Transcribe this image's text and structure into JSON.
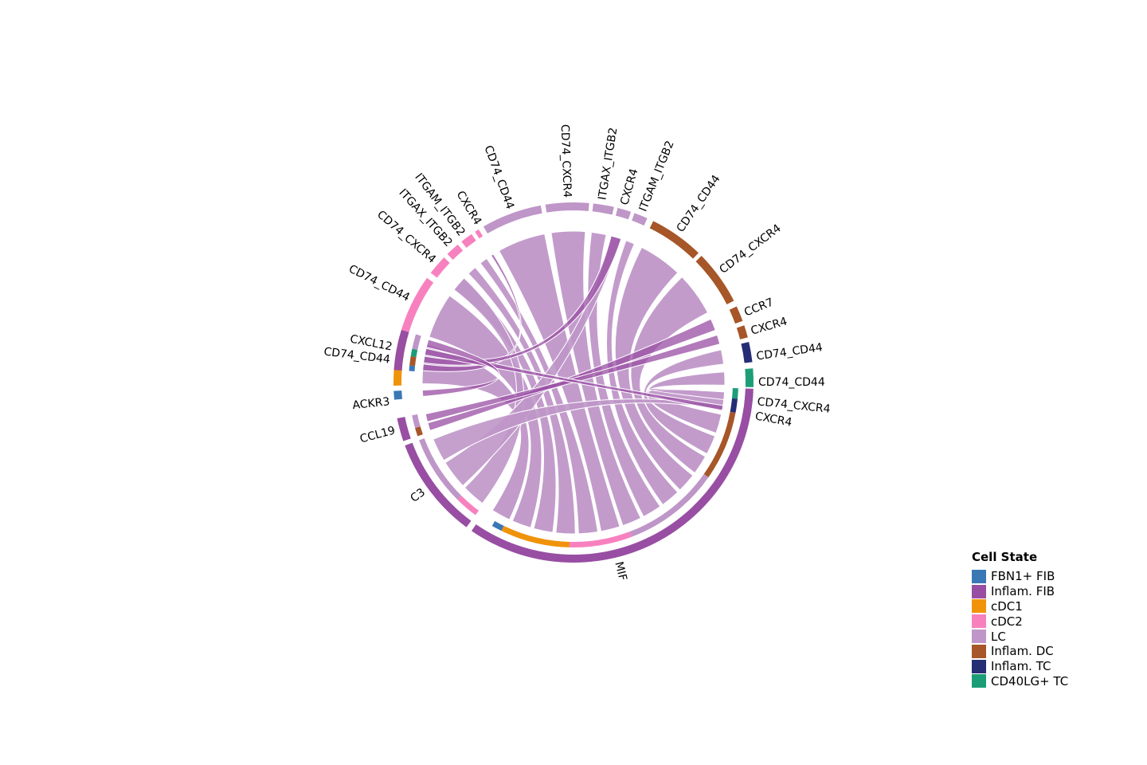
{
  "chart_data": {
    "type": "chord",
    "legend": {
      "title": "Cell State",
      "position": "bottom-right",
      "items": [
        {
          "label": "FBN1+ FIB",
          "color": "#3a78b5"
        },
        {
          "label": "Inflam. FIB",
          "color": "#984ea3"
        },
        {
          "label": "cDC1",
          "color": "#f0930a"
        },
        {
          "label": "cDC2",
          "color": "#f781bf"
        },
        {
          "label": "LC",
          "color": "#bf96c8"
        },
        {
          "label": "Inflam. DC",
          "color": "#a65628"
        },
        {
          "label": "Inflam. TC",
          "color": "#252d75"
        },
        {
          "label": "CD40LG+ TC",
          "color": "#1b9e77"
        }
      ]
    },
    "receivers": [
      {
        "label": "ACKR3",
        "cell_state": "FBN1+ FIB"
      },
      {
        "label": "CD74_CD44",
        "cell_state": "cDC1"
      },
      {
        "label": "CD74_CD44",
        "cell_state": "cDC2"
      },
      {
        "label": "CD74_CXCR4",
        "cell_state": "cDC2"
      },
      {
        "label": "ITGAX_ITGB2",
        "cell_state": "cDC2"
      },
      {
        "label": "ITGAM_ITGB2",
        "cell_state": "cDC2"
      },
      {
        "label": "CXCR4",
        "cell_state": "cDC2"
      },
      {
        "label": "CD74_CD44",
        "cell_state": "LC"
      },
      {
        "label": "CD74_CXCR4",
        "cell_state": "LC"
      },
      {
        "label": "ITGAX_ITGB2",
        "cell_state": "LC"
      },
      {
        "label": "CXCR4",
        "cell_state": "LC"
      },
      {
        "label": "ITGAM_ITGB2",
        "cell_state": "LC"
      },
      {
        "label": "CD74_CD44",
        "cell_state": "Inflam. DC"
      },
      {
        "label": "CD74_CXCR4",
        "cell_state": "Inflam. DC"
      },
      {
        "label": "CCR7",
        "cell_state": "Inflam. DC"
      },
      {
        "label": "CXCR4",
        "cell_state": "Inflam. DC"
      },
      {
        "label": "CD74_CD44",
        "cell_state": "Inflam. TC"
      },
      {
        "label": "CD74_CD44",
        "cell_state": "CD40LG+ TC"
      },
      {
        "label": "CD74_CXCR4",
        "cell_state": "CD40LG+ TC"
      },
      {
        "label": "CXCR4",
        "cell_state": "CD40LG+ TC"
      }
    ],
    "senders": [
      {
        "label": "CXCL12",
        "cell_state": "Inflam. FIB"
      },
      {
        "label": "CCL19",
        "cell_state": "Inflam. FIB"
      },
      {
        "label": "C3",
        "cell_state": "Inflam. FIB"
      },
      {
        "label": "MIF",
        "cell_state": "Inflam. FIB"
      }
    ],
    "link_color": "#bf96c8",
    "link_highlight_color": "#984ea3"
  }
}
